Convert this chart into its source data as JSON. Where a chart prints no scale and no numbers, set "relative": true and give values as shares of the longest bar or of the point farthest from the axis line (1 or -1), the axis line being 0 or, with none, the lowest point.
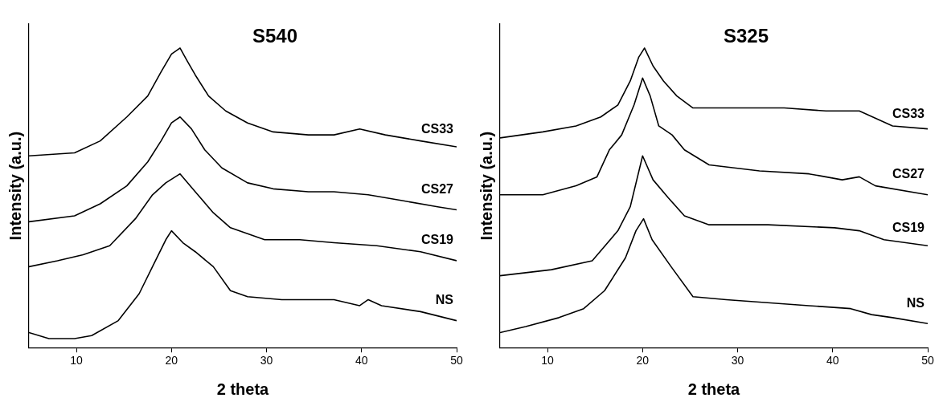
{
  "chart_data": [
    {
      "type": "line",
      "title": "S540",
      "xlabel": "2 theta",
      "ylabel": "Intensity (a.u.)",
      "relative": true,
      "xlim": [
        5,
        50
      ],
      "xticks": [
        10,
        20,
        30,
        40,
        50
      ],
      "grid": false,
      "marker": "none",
      "line_style": "solid",
      "series": [
        {
          "name": "CS33",
          "color": "#000000",
          "x": [
            5,
            9.8,
            12.5,
            15.3,
            17.5,
            18.9,
            20,
            20.9,
            21.6,
            22.5,
            23.9,
            25.7,
            28,
            30.7,
            34.4,
            37.1,
            39.8,
            42.5,
            46.2,
            50
          ],
          "values": [
            0.64,
            0.65,
            0.69,
            0.77,
            0.84,
            0.92,
            0.98,
            1,
            0.96,
            0.91,
            0.84,
            0.79,
            0.75,
            0.72,
            0.71,
            0.71,
            0.73,
            0.71,
            0.69,
            0.67
          ]
        },
        {
          "name": "CS27",
          "color": "#000000",
          "x": [
            5,
            9.8,
            12.5,
            15.3,
            17.5,
            18.9,
            20,
            20.9,
            22.1,
            23.5,
            25.3,
            28,
            30.7,
            34.4,
            37.1,
            40.7,
            44.4,
            48,
            50
          ],
          "values": [
            0.42,
            0.44,
            0.48,
            0.54,
            0.62,
            0.69,
            0.75,
            0.77,
            0.73,
            0.66,
            0.6,
            0.55,
            0.53,
            0.52,
            0.52,
            0.51,
            0.49,
            0.47,
            0.46
          ]
        },
        {
          "name": "CS19",
          "color": "#000000",
          "x": [
            5,
            8,
            10.7,
            13.5,
            16.2,
            18,
            19.4,
            20.9,
            22.5,
            24.4,
            26.2,
            29.8,
            33.5,
            37.1,
            41.6,
            46.2,
            50
          ],
          "values": [
            0.27,
            0.29,
            0.31,
            0.34,
            0.43,
            0.51,
            0.55,
            0.58,
            0.52,
            0.45,
            0.4,
            0.36,
            0.36,
            0.35,
            0.34,
            0.32,
            0.29
          ]
        },
        {
          "name": "NS",
          "color": "#000000",
          "x": [
            5,
            7.1,
            9.8,
            11.6,
            14.4,
            16.6,
            18,
            19.4,
            20,
            21.2,
            22.5,
            24.4,
            26.2,
            28,
            31.6,
            37.1,
            39.8,
            40.7,
            42.1,
            46.2,
            50
          ],
          "values": [
            0.05,
            0.03,
            0.03,
            0.04,
            0.09,
            0.18,
            0.27,
            0.36,
            0.39,
            0.35,
            0.32,
            0.27,
            0.19,
            0.17,
            0.16,
            0.16,
            0.14,
            0.16,
            0.14,
            0.12,
            0.09
          ]
        }
      ]
    },
    {
      "type": "line",
      "title": "S325",
      "xlabel": "2 theta",
      "ylabel": "Intensity (a.u.)",
      "relative": true,
      "xlim": [
        5,
        50
      ],
      "xticks": [
        10,
        20,
        30,
        40,
        50
      ],
      "grid": false,
      "marker": "none",
      "line_style": "solid",
      "series": [
        {
          "name": "CS33",
          "color": "#000000",
          "x": [
            5,
            9.5,
            13,
            15.6,
            17.4,
            18.7,
            19.6,
            20.2,
            21.1,
            22.2,
            23.6,
            25.3,
            27.9,
            31.4,
            34.9,
            39.3,
            42.8,
            46.3,
            50
          ],
          "values": [
            0.7,
            0.72,
            0.74,
            0.77,
            0.81,
            0.89,
            0.97,
            1,
            0.94,
            0.89,
            0.84,
            0.8,
            0.8,
            0.8,
            0.8,
            0.79,
            0.79,
            0.74,
            0.73
          ]
        },
        {
          "name": "CS27",
          "color": "#000000",
          "x": [
            5,
            9.5,
            13,
            15.2,
            16.5,
            17.8,
            19.1,
            20,
            20.8,
            21.7,
            23.1,
            24.4,
            27,
            32.3,
            37.5,
            41,
            42.8,
            44.5,
            50
          ],
          "values": [
            0.51,
            0.51,
            0.54,
            0.57,
            0.66,
            0.71,
            0.81,
            0.9,
            0.84,
            0.74,
            0.71,
            0.66,
            0.61,
            0.59,
            0.58,
            0.56,
            0.57,
            0.54,
            0.51
          ]
        },
        {
          "name": "CS19",
          "color": "#000000",
          "x": [
            5,
            10.4,
            14.7,
            17.4,
            18.7,
            20,
            21.1,
            22.7,
            24.4,
            27,
            33.2,
            40.2,
            42.8,
            45.4,
            50
          ],
          "values": [
            0.24,
            0.26,
            0.29,
            0.39,
            0.47,
            0.64,
            0.56,
            0.5,
            0.44,
            0.41,
            0.41,
            0.4,
            0.39,
            0.36,
            0.34
          ]
        },
        {
          "name": "NS",
          "color": "#000000",
          "x": [
            5,
            7.7,
            11.2,
            13.8,
            16,
            18.2,
            19.3,
            20.1,
            21,
            23,
            25.3,
            28.8,
            37.5,
            41.9,
            44.1,
            46.3,
            50
          ],
          "values": [
            0.05,
            0.07,
            0.1,
            0.13,
            0.19,
            0.3,
            0.39,
            0.43,
            0.36,
            0.27,
            0.17,
            0.16,
            0.14,
            0.13,
            0.11,
            0.1,
            0.08
          ]
        }
      ]
    }
  ]
}
